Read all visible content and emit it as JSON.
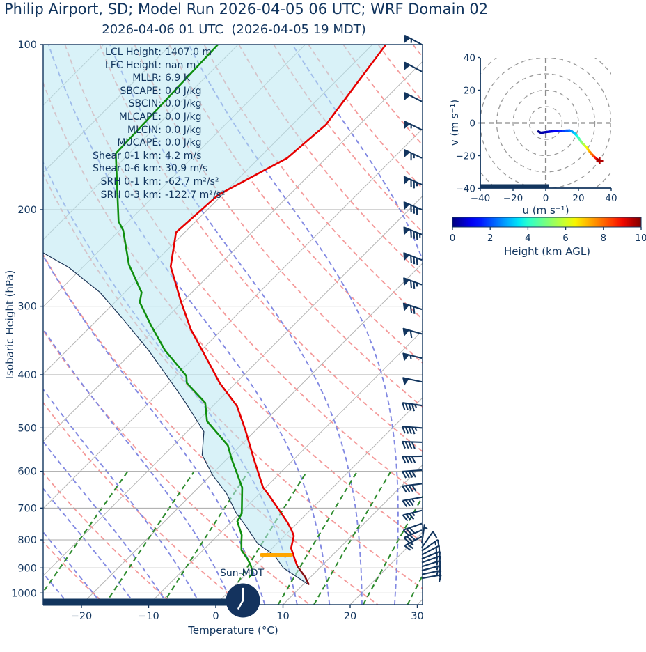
{
  "title": {
    "main": "Philip Airport, SD; Model Run 2026-04-05 06 UTC; WRF Domain 02",
    "sub": "2026-04-06 01 UTC  (2026-04-05 19 MDT)"
  },
  "skewt": {
    "xlabel": "Temperature (°C)",
    "ylabel": "Isobaric Height (hPa)",
    "x_tick_labels": [
      "−20",
      "−10",
      "0",
      "10",
      "20",
      "30"
    ],
    "x_tick_values": [
      -20,
      -10,
      0,
      10,
      20,
      30
    ],
    "y_tick_labels": [
      "100",
      "200",
      "300",
      "400",
      "500",
      "600",
      "700",
      "800",
      "900",
      "1000"
    ],
    "y_tick_values": [
      100,
      200,
      300,
      400,
      500,
      600,
      700,
      800,
      900,
      1000
    ],
    "sun_label": "Sun-MDT",
    "clock_time": "19:00",
    "stats": [
      {
        "label": "LCL Height:",
        "value": "1407.0 m"
      },
      {
        "label": "LFC Height:",
        "value": "nan m"
      },
      {
        "label": "MLLR:",
        "value": "6.9 K"
      },
      {
        "label": "SBCAPE:",
        "value": "0.0 J/kg"
      },
      {
        "label": "SBCIN:",
        "value": "0.0 J/kg"
      },
      {
        "label": "MLCAPE:",
        "value": "0.0 J/kg"
      },
      {
        "label": "MLCIN:",
        "value": "0.0 J/kg"
      },
      {
        "label": "MUCAPE:",
        "value": "0.0 J/kg"
      },
      {
        "label": "Shear 0-1 km:",
        "value": "4.2 m/s"
      },
      {
        "label": "Shear 0-6 km:",
        "value": "30.9 m/s"
      },
      {
        "label": "SRH 0-1 km:",
        "value": "-62.7 m²/s²"
      },
      {
        "label": "SRH 0-3 km:",
        "value": "-122.7 m²/s²"
      }
    ]
  },
  "hodograph": {
    "xlabel": "u (m s⁻¹)",
    "ylabel": "v (m s⁻¹)",
    "tick_labels": [
      "−40",
      "−20",
      "0",
      "20",
      "40"
    ],
    "tick_values": [
      -40,
      -20,
      0,
      20,
      40
    ],
    "ring_radii": [
      10,
      20,
      30,
      40,
      50
    ]
  },
  "colorbar": {
    "label": "Height (km AGL)",
    "tick_labels": [
      "0",
      "2",
      "4",
      "6",
      "8",
      "10"
    ],
    "tick_values": [
      0,
      2,
      4,
      6,
      8,
      10
    ],
    "min": 0,
    "max": 10,
    "colormap": "jet"
  },
  "colors": {
    "text": "#12355e",
    "temperature": "#e60000",
    "dewpoint": "#0f8f0f",
    "parcel": "#1d3557",
    "parcel_surface_overlay": "#7a1417",
    "cin_fill": "rgba(185,231,242,0.55)",
    "lcl_marker": "#ffa500",
    "dry_adiabat": "#f49999",
    "moist_adiabat": "#8289e2",
    "mixing_ratio": "#2d8b2d",
    "isotherm": "#b5b5b5",
    "isobar": "#a8a8a8",
    "barb": "#12355e",
    "grid_dashed": "#999999"
  },
  "chart_data": {
    "type": "skewt_log_p_sounding_with_hodograph",
    "pressure_limits_hpa": [
      100,
      1050
    ],
    "temperature_limits_c": [
      -25.7,
      30.8
    ],
    "isobars_hpa": [
      100,
      200,
      300,
      400,
      500,
      600,
      700,
      800,
      900,
      1000
    ],
    "isotherms_c": {
      "start": -120,
      "stop": 40,
      "step": 10
    },
    "dry_adiabats_theta_c": {
      "start": -30,
      "stop": 170,
      "step": 10
    },
    "moist_adiabats_t0_c": {
      "start": -40,
      "stop": 35,
      "step": 5
    },
    "mixing_ratios_g_kg": [
      0.4,
      1,
      2,
      4,
      7,
      10,
      16,
      24,
      32
    ],
    "temperature_profile_p_t": [
      [
        100,
        -58
      ],
      [
        140,
        -55
      ],
      [
        161,
        -55.8
      ],
      [
        188,
        -60.6
      ],
      [
        220,
        -61.3
      ],
      [
        254,
        -57
      ],
      [
        294,
        -50.3
      ],
      [
        331,
        -44.6
      ],
      [
        360,
        -40
      ],
      [
        414,
        -32.4
      ],
      [
        456,
        -26.4
      ],
      [
        503,
        -21.7
      ],
      [
        571,
        -15.9
      ],
      [
        642,
        -10.4
      ],
      [
        664,
        -8.3
      ],
      [
        722,
        -3.3
      ],
      [
        743,
        -1.6
      ],
      [
        765,
        0
      ],
      [
        787,
        1.4
      ],
      [
        828,
        2.8
      ],
      [
        866,
        4.9
      ],
      [
        893,
        6.4
      ],
      [
        935,
        9.2
      ],
      [
        966,
        10.9
      ]
    ],
    "dewpoint_profile_p_t": [
      [
        100,
        -83
      ],
      [
        158,
        -82
      ],
      [
        210,
        -71.5
      ],
      [
        218,
        -69.5
      ],
      [
        252,
        -63.5
      ],
      [
        283,
        -57.5
      ],
      [
        295,
        -56.3
      ],
      [
        325,
        -51.2
      ],
      [
        361,
        -45.4
      ],
      [
        402,
        -38.4
      ],
      [
        414,
        -37.3
      ],
      [
        450,
        -31.6
      ],
      [
        486,
        -28.6
      ],
      [
        538,
        -21.9
      ],
      [
        571,
        -19.2
      ],
      [
        642,
        -13.5
      ],
      [
        716,
        -9.7
      ],
      [
        740,
        -9.2
      ],
      [
        784,
        -6.5
      ],
      [
        805,
        -5.6
      ],
      [
        835,
        -4.3
      ],
      [
        868,
        -2.0
      ],
      [
        893,
        -0.5
      ],
      [
        921,
        0.8
      ],
      [
        938,
        0.9
      ]
    ],
    "parcel_profile_p_t": [
      [
        966,
        10.9
      ],
      [
        900,
        4.6
      ],
      [
        855,
        1.5
      ],
      [
        812,
        -2.9
      ],
      [
        750,
        -7.6
      ],
      [
        716,
        -10.5
      ],
      [
        660,
        -14.8
      ],
      [
        609,
        -19.8
      ],
      [
        560,
        -24.3
      ],
      [
        508,
        -27.5
      ],
      [
        450,
        -34.5
      ],
      [
        414,
        -39.5
      ],
      [
        360,
        -48
      ],
      [
        318,
        -56
      ],
      [
        283,
        -63.7
      ],
      [
        255,
        -72
      ],
      [
        235,
        -80
      ],
      [
        220,
        -86
      ]
    ],
    "parcel_surface_overlay_p_t": [
      [
        893,
        6.4
      ],
      [
        935,
        9.2
      ],
      [
        966,
        10.9
      ]
    ],
    "lcl": {
      "pressure_hpa": 852,
      "temperature_c": 1.6,
      "half_width_c": 2.2,
      "height_m": 1407
    },
    "wind_barbs_p_dir_kt": [
      [
        100,
        298,
        55
      ],
      [
        112,
        298,
        50
      ],
      [
        127,
        297,
        50
      ],
      [
        143,
        296,
        55
      ],
      [
        161,
        295,
        65
      ],
      [
        180,
        294,
        75
      ],
      [
        200,
        293,
        80
      ],
      [
        222,
        292,
        85
      ],
      [
        247,
        291,
        80
      ],
      [
        274,
        290,
        75
      ],
      [
        304,
        288,
        70
      ],
      [
        337,
        286,
        60
      ],
      [
        373,
        284,
        55
      ],
      [
        412,
        282,
        50
      ],
      [
        455,
        278,
        45
      ],
      [
        500,
        274,
        45
      ],
      [
        531,
        272,
        40
      ],
      [
        563,
        269,
        40
      ],
      [
        597,
        266,
        40
      ],
      [
        632,
        263,
        40
      ],
      [
        669,
        260,
        38
      ],
      [
        707,
        256,
        35
      ],
      [
        747,
        251,
        32
      ],
      [
        768,
        247,
        30
      ],
      [
        789,
        242,
        25
      ],
      [
        812,
        8,
        5
      ],
      [
        826,
        35,
        10
      ],
      [
        838,
        55,
        18
      ],
      [
        852,
        62,
        20
      ],
      [
        866,
        68,
        20
      ],
      [
        880,
        70,
        18
      ],
      [
        895,
        72,
        17
      ],
      [
        910,
        75,
        15
      ],
      [
        925,
        78,
        13
      ],
      [
        940,
        80,
        12
      ]
    ],
    "hodograph_u_v_km": [
      [
        -4.5,
        -5.2,
        0
      ],
      [
        -3,
        -6,
        0.15
      ],
      [
        -1.5,
        -5.8,
        0.3
      ],
      [
        0.5,
        -5.5,
        0.5
      ],
      [
        2.5,
        -5.3,
        0.7
      ],
      [
        4.5,
        -5.1,
        0.9
      ],
      [
        6.5,
        -4.9,
        1.1
      ],
      [
        8.5,
        -4.9,
        1.4
      ],
      [
        10.5,
        -4.8,
        1.7
      ],
      [
        12.5,
        -4.7,
        2.0
      ],
      [
        14.5,
        -4.6,
        2.3
      ],
      [
        16,
        -5.2,
        2.7
      ],
      [
        17.5,
        -6.2,
        3.1
      ],
      [
        18.8,
        -7.6,
        3.5
      ],
      [
        20,
        -9,
        4.0
      ],
      [
        21,
        -10.5,
        4.5
      ],
      [
        22,
        -12,
        5.0
      ],
      [
        23.5,
        -13.5,
        5.6
      ],
      [
        25,
        -15,
        6.2
      ],
      [
        26,
        -16.5,
        6.8
      ],
      [
        27.2,
        -18,
        7.4
      ],
      [
        28.6,
        -19.6,
        8.0
      ],
      [
        30,
        -21,
        8.6
      ],
      [
        31.5,
        -22.2,
        9.3
      ],
      [
        33,
        -23.2,
        10
      ]
    ],
    "night_bar": {
      "skewt_t_end_c": 2.2,
      "hodograph_u_end": 2
    }
  }
}
